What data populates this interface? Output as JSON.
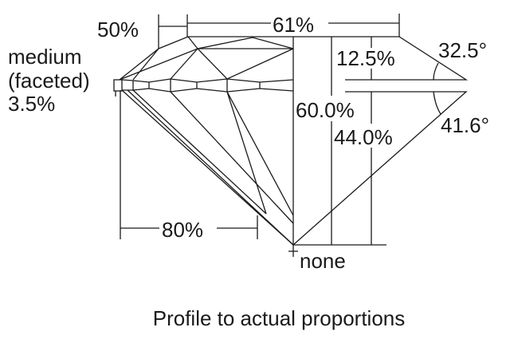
{
  "labels": {
    "table_crown": "50%",
    "table_width": "61%",
    "girdle_line1": "medium",
    "girdle_line2": "(faceted)",
    "girdle_line3": "3.5%",
    "crown_height": "12.5%",
    "crown_angle": "32.5°",
    "total_depth": "60.0%",
    "pavilion_depth": "44.0%",
    "pavilion_angle": "41.6°",
    "lower_half": "80%",
    "culet": "none"
  },
  "caption": "Profile to actual proportions"
}
